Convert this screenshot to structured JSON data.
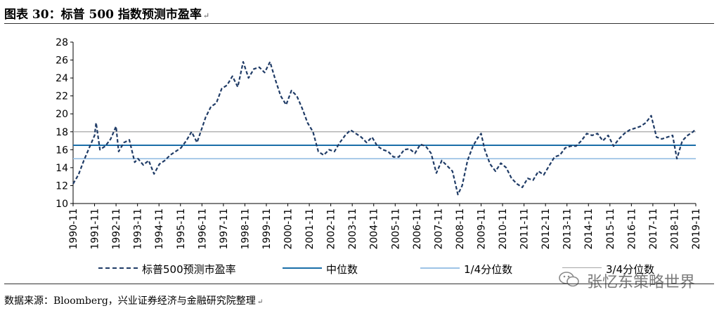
{
  "title": "图表 30：标普 500 指数预测市盈率",
  "source_note": "数据来源：Bloomberg，兴业证券经济与金融研究院整理",
  "watermark": "张忆东策略世界",
  "colors": {
    "series": "#1f3b66",
    "median": "#1a6ea8",
    "q1": "#9dc3e6",
    "q3": "#a6a6a6"
  },
  "chart_data": {
    "type": "line",
    "title": "",
    "xlabel": "",
    "ylabel": "",
    "ylim": [
      10,
      28
    ],
    "yticks": [
      10,
      12,
      14,
      16,
      18,
      20,
      22,
      24,
      26,
      28
    ],
    "xticks": [
      "1990-11",
      "1991-11",
      "1992-11",
      "1993-11",
      "1994-11",
      "1995-11",
      "1996-11",
      "1997-11",
      "1998-11",
      "1999-11",
      "2000-11",
      "2001-11",
      "2002-11",
      "2003-11",
      "2004-11",
      "2005-11",
      "2006-11",
      "2007-11",
      "2008-11",
      "2009-11",
      "2010-11",
      "2011-11",
      "2012-11",
      "2013-11",
      "2014-11",
      "2015-11",
      "2016-11",
      "2017-11",
      "2018-11",
      "2019-11"
    ],
    "grid": false,
    "legend_position": "bottom",
    "series": [
      {
        "name": "标普500预测市盈率",
        "style": "dashed",
        "x": [
          1990.83,
          1991.08,
          1991.33,
          1991.58,
          1991.83,
          1991.9,
          1992.08,
          1992.33,
          1992.58,
          1992.83,
          1992.95,
          1993.2,
          1993.45,
          1993.7,
          1993.85,
          1994.1,
          1994.35,
          1994.6,
          1994.85,
          1995.1,
          1995.35,
          1995.6,
          1995.85,
          1996.1,
          1996.35,
          1996.6,
          1996.83,
          1997.0,
          1997.25,
          1997.5,
          1997.75,
          1998.0,
          1998.25,
          1998.5,
          1998.75,
          1999.0,
          1999.25,
          1999.5,
          1999.75,
          2000.0,
          2000.25,
          2000.5,
          2000.75,
          2001.0,
          2001.25,
          2001.5,
          2001.75,
          2002.0,
          2002.25,
          2002.5,
          2002.75,
          2003.0,
          2003.25,
          2003.5,
          2003.75,
          2004.0,
          2004.25,
          2004.5,
          2004.75,
          2005.0,
          2005.25,
          2005.5,
          2005.75,
          2006.0,
          2006.25,
          2006.5,
          2006.75,
          2007.0,
          2007.25,
          2007.5,
          2007.75,
          2008.0,
          2008.25,
          2008.5,
          2008.75,
          2008.95,
          2009.2,
          2009.45,
          2009.7,
          2009.83,
          2010.0,
          2010.25,
          2010.5,
          2010.75,
          2011.0,
          2011.25,
          2011.5,
          2011.75,
          2012.0,
          2012.25,
          2012.5,
          2012.75,
          2013.0,
          2013.25,
          2013.5,
          2013.75,
          2014.0,
          2014.25,
          2014.5,
          2014.75,
          2015.0,
          2015.25,
          2015.5,
          2015.75,
          2016.0,
          2016.25,
          2016.5,
          2016.75,
          2017.0,
          2017.25,
          2017.5,
          2017.75,
          2018.0,
          2018.25,
          2018.5,
          2018.75,
          2018.95,
          2019.2,
          2019.45,
          2019.7,
          2019.83
        ],
        "values": [
          12.2,
          13.2,
          14.8,
          16.2,
          17.6,
          19.0,
          16.0,
          16.4,
          17.2,
          18.6,
          15.8,
          16.8,
          17.1,
          14.6,
          15.0,
          14.3,
          14.8,
          13.3,
          14.4,
          14.8,
          15.4,
          15.8,
          16.2,
          17.0,
          18.0,
          16.8,
          18.4,
          19.6,
          20.8,
          21.2,
          22.8,
          23.2,
          24.2,
          23.0,
          25.8,
          24.0,
          25.0,
          25.2,
          24.6,
          25.8,
          23.8,
          22.0,
          21.0,
          22.6,
          22.0,
          20.6,
          19.0,
          18.0,
          15.8,
          15.4,
          16.0,
          15.8,
          16.8,
          17.6,
          18.2,
          17.8,
          17.4,
          16.8,
          17.4,
          16.4,
          16.0,
          15.8,
          15.2,
          15.2,
          16.0,
          16.1,
          15.6,
          16.6,
          16.4,
          15.6,
          13.4,
          14.8,
          14.2,
          13.6,
          11.0,
          12.0,
          14.8,
          16.4,
          17.4,
          17.8,
          16.0,
          14.4,
          13.6,
          14.5,
          14.0,
          12.8,
          12.2,
          11.8,
          12.8,
          12.6,
          13.6,
          13.2,
          14.2,
          15.2,
          15.4,
          16.2,
          16.4,
          16.4,
          17.0,
          17.8,
          17.6,
          17.8,
          17.0,
          17.6,
          16.4,
          17.2,
          17.8,
          18.2,
          18.4,
          18.6,
          19.0,
          19.8,
          17.4,
          17.2,
          17.4,
          17.6,
          15.0,
          17.0,
          17.6,
          18.0,
          18.3
        ]
      },
      {
        "name": "中位数",
        "style": "solid",
        "constant": 16.5
      },
      {
        "name": "1/4分位数",
        "style": "solid",
        "constant": 15.0
      },
      {
        "name": "3/4分位数",
        "style": "solid",
        "constant": 18.0
      }
    ]
  }
}
